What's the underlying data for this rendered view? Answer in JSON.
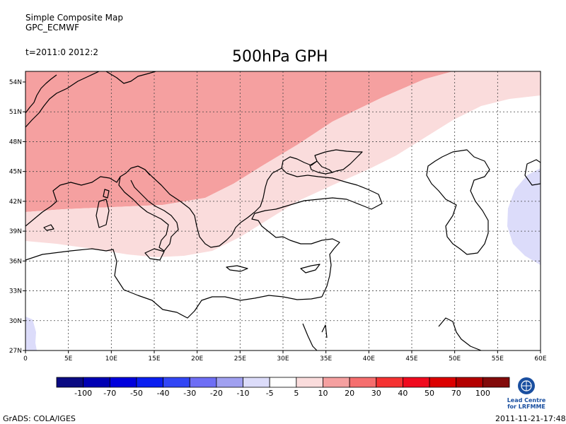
{
  "header": {
    "map_title": "Simple Composite Map",
    "map_subtitle": "GPC_ECMWF",
    "time_label": "t=2011:0 2012:2",
    "main_title": "500hPa GPH"
  },
  "axes": {
    "lat_labels": [
      "54N",
      "51N",
      "48N",
      "45N",
      "42N",
      "39N",
      "36N",
      "33N",
      "30N",
      "27N"
    ],
    "lon_labels": [
      "0",
      "5E",
      "10E",
      "15E",
      "20E",
      "25E",
      "30E",
      "35E",
      "40E",
      "45E",
      "50E",
      "55E",
      "60E"
    ]
  },
  "colorbar": {
    "labels": [
      "-100",
      "-70",
      "-50",
      "-40",
      "-30",
      "-20",
      "-10",
      "-5",
      "5",
      "10",
      "20",
      "30",
      "40",
      "50",
      "70",
      "100"
    ],
    "colors": [
      "#0a0a82",
      "#0000b4",
      "#0000dc",
      "#0a1ef0",
      "#3246f5",
      "#6e6ef5",
      "#a0a0f0",
      "#dcdcfa",
      "#ffffff",
      "#fadcdc",
      "#f5a0a0",
      "#f56e6e",
      "#f53232",
      "#f00a1e",
      "#dc0000",
      "#b40000",
      "#820a0a"
    ]
  },
  "footer": {
    "left": "GrADS: COLA/IGES",
    "right": "2011-11-21-17:48"
  },
  "logo": {
    "line1": "Lead Centre",
    "line2": "for LRFMME"
  },
  "field_colors": {
    "strong_positive": "#f5a0a0",
    "weak_positive": "#fadcdc",
    "weak_negative": "#dcdcfa"
  }
}
